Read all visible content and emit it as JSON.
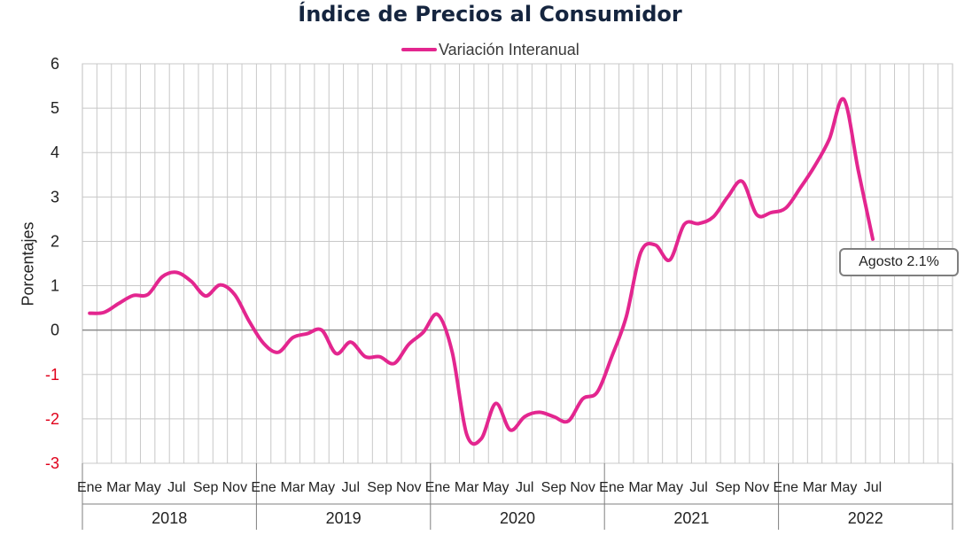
{
  "chart_data": {
    "type": "line",
    "title": "Índice de Precios al Consumidor",
    "ylabel": "Porcentajes",
    "xlabel": "",
    "ylim": [
      -3,
      6
    ],
    "yticks": [
      "6",
      "5",
      "4",
      "3",
      "2",
      "1",
      "0",
      "-1",
      "-2",
      "-3"
    ],
    "negative_tick_color": "#e0001b",
    "grid": true,
    "legend": "top-center",
    "month_labels": [
      "Ene",
      "Mar",
      "May",
      "Jul",
      "Sep",
      "Nov"
    ],
    "years": [
      "2018",
      "2019",
      "2020",
      "2021",
      "2022"
    ],
    "series": [
      {
        "name": "Variación Interanual",
        "color": "#e3268f",
        "values": [
          0.38,
          0.4,
          0.6,
          0.78,
          0.8,
          1.2,
          1.3,
          1.1,
          0.77,
          1.02,
          0.8,
          0.2,
          -0.3,
          -0.5,
          -0.17,
          -0.08,
          0.0,
          -0.53,
          -0.27,
          -0.6,
          -0.6,
          -0.75,
          -0.32,
          -0.05,
          0.35,
          -0.5,
          -2.35,
          -2.45,
          -1.65,
          -2.25,
          -1.95,
          -1.85,
          -1.95,
          -2.05,
          -1.55,
          -1.4,
          -0.6,
          0.3,
          1.75,
          1.92,
          1.58,
          2.38,
          2.4,
          2.55,
          3.0,
          3.35,
          2.6,
          2.65,
          2.75,
          3.2,
          3.7,
          4.3,
          5.2,
          3.6,
          2.05
        ]
      }
    ],
    "annotation": {
      "text": "Agosto 2.1%"
    }
  }
}
